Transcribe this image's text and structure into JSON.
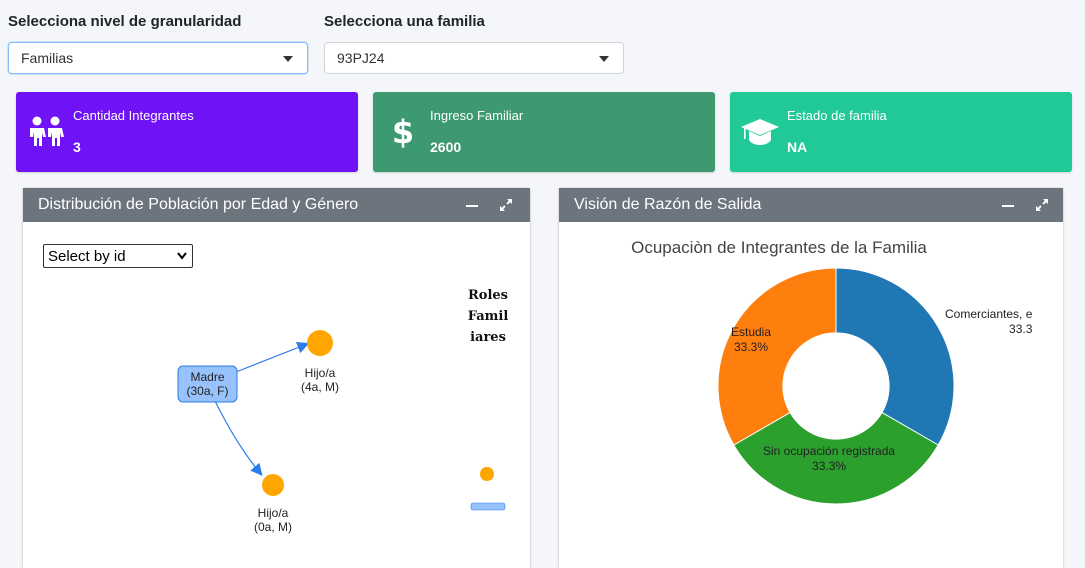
{
  "filters": {
    "granularity": {
      "label": "Selecciona nivel de granularidad",
      "value": "Familias"
    },
    "family": {
      "label": "Selecciona una familia",
      "value": "93PJ24"
    }
  },
  "info_boxes": [
    {
      "title": "Cantidad Integrantes",
      "value": "3",
      "color": "#6f12f5",
      "icon": "people-icon"
    },
    {
      "title": "Ingreso Familiar",
      "value": "2600",
      "color": "#3d9970",
      "icon": "dollar-icon"
    },
    {
      "title": "Estado de familia",
      "value": "NA",
      "color": "#20c997",
      "icon": "graduation-cap-icon"
    }
  ],
  "network_card": {
    "title": "Distribución de Población por Edad y Género",
    "select_value": "Select by id",
    "nodes": [
      {
        "id": "madre",
        "line1": "Madre",
        "line2": "(30a, F)",
        "shape": "box"
      },
      {
        "id": "hijo1",
        "line1": "Hijo/a",
        "line2": "(4a, M)",
        "shape": "dot"
      },
      {
        "id": "hijo2",
        "line1": "Hijo/a",
        "line2": "(0a, M)",
        "shape": "dot"
      }
    ],
    "legend_title": [
      "Roles",
      "Famil",
      "iares"
    ],
    "colors": {
      "box_fill": "#97c2fc",
      "box_border": "#2b7ce9",
      "dot": "#ffa500",
      "edge": "#2b7ce9"
    }
  },
  "pie_card": {
    "title": "Visión de Razón de Salida",
    "chart_data": {
      "type": "pie",
      "title": "Ocupaciòn de Integrantes de la Familia",
      "hole": 0.45,
      "slices": [
        {
          "label": "Comerciantes, e",
          "pct_label": "33.3",
          "value": 33.3,
          "color": "#1f77b4"
        },
        {
          "label": "Sin ocupación registrada",
          "pct_label": "33.3%",
          "value": 33.3,
          "color": "#2ca02c"
        },
        {
          "label": "Estudia",
          "pct_label": "33.3%",
          "value": 33.3,
          "color": "#ff7f0e"
        }
      ]
    }
  }
}
